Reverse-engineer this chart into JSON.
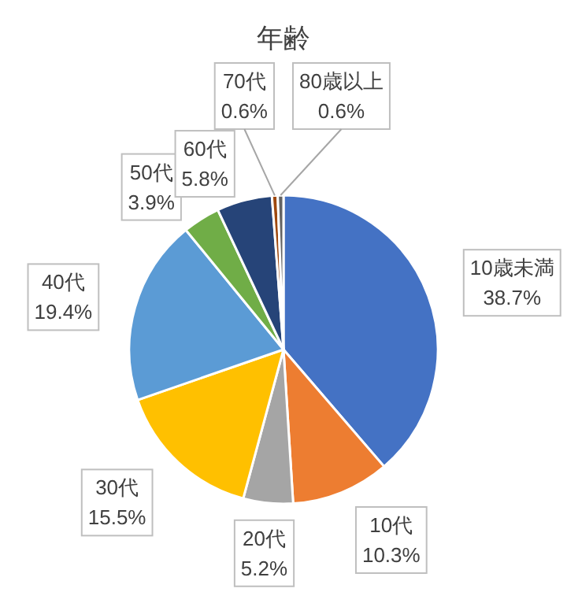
{
  "chart_data": {
    "type": "pie",
    "title": "年齢",
    "categories": [
      "10歳未満",
      "10代",
      "20代",
      "30代",
      "40代",
      "50代",
      "60代",
      "70代",
      "80歳以上"
    ],
    "values": [
      38.7,
      10.3,
      5.2,
      15.5,
      19.4,
      3.9,
      5.8,
      0.6,
      0.6
    ],
    "colors": [
      "#4472c4",
      "#ed7d31",
      "#a5a5a5",
      "#ffc000",
      "#5b9bd5",
      "#70ad47",
      "#264478",
      "#9e480e",
      "#636363"
    ],
    "value_labels": [
      "38.7%",
      "10.3%",
      "5.2%",
      "15.5%",
      "19.4%",
      "3.9%",
      "5.8%",
      "0.6%",
      "0.6%"
    ]
  }
}
